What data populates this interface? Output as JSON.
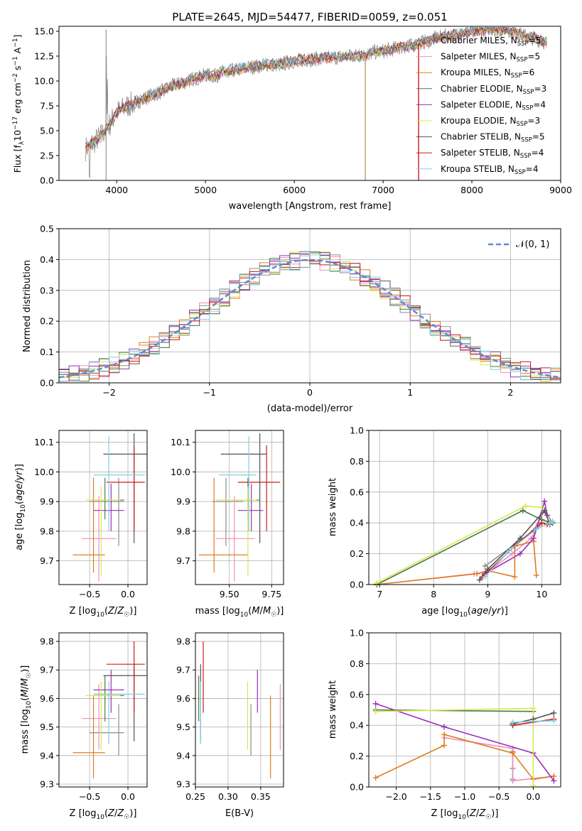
{
  "chart_data": [
    {
      "type": "line",
      "title": "PLATE=2645, MJD=54477, FIBERID=0059, z=0.051",
      "xlabel": "wavelength [Angstrom, rest frame]",
      "ylabel": "Flux [f_λ 10^-17 erg cm^-2 s^-1 A^-1]",
      "xlim": [
        3350,
        9000
      ],
      "ylim": [
        0,
        15.5
      ],
      "xticks": [
        "4000",
        "5000",
        "6000",
        "7000",
        "8000",
        "9000"
      ],
      "yticks": [
        "0.0",
        "2.5",
        "5.0",
        "7.5",
        "10.0",
        "12.5",
        "15.0"
      ],
      "legend_position": "right",
      "spectrum_points": [
        [
          3650,
          3.2
        ],
        [
          3700,
          3.6
        ],
        [
          3750,
          3.9
        ],
        [
          3800,
          4.3
        ],
        [
          3850,
          4.8
        ],
        [
          3900,
          5.2
        ],
        [
          3950,
          6.1
        ],
        [
          4000,
          6.8
        ],
        [
          4100,
          7.4
        ],
        [
          4200,
          7.8
        ],
        [
          4300,
          8.2
        ],
        [
          4400,
          8.6
        ],
        [
          4500,
          8.9
        ],
        [
          4600,
          9.4
        ],
        [
          4700,
          9.7
        ],
        [
          4800,
          10.0
        ],
        [
          4900,
          10.3
        ],
        [
          5000,
          10.6
        ],
        [
          5100,
          10.5
        ],
        [
          5200,
          10.9
        ],
        [
          5300,
          11.0
        ],
        [
          5400,
          11.2
        ],
        [
          5500,
          11.4
        ],
        [
          5600,
          11.5
        ],
        [
          5700,
          11.7
        ],
        [
          5800,
          11.6
        ],
        [
          5900,
          11.8
        ],
        [
          6000,
          12.0
        ],
        [
          6100,
          12.1
        ],
        [
          6200,
          12.2
        ],
        [
          6300,
          12.3
        ],
        [
          6400,
          12.3
        ],
        [
          6500,
          12.4
        ],
        [
          6600,
          12.5
        ],
        [
          6700,
          12.6
        ],
        [
          6800,
          12.6
        ],
        [
          6900,
          12.9
        ],
        [
          7000,
          13.0
        ],
        [
          7100,
          13.2
        ],
        [
          7200,
          13.4
        ],
        [
          7300,
          13.5
        ],
        [
          7400,
          13.8
        ],
        [
          7500,
          14.0
        ],
        [
          7600,
          14.3
        ],
        [
          7700,
          14.5
        ],
        [
          7800,
          14.6
        ],
        [
          7900,
          14.8
        ],
        [
          8000,
          14.9
        ],
        [
          8100,
          15.1
        ],
        [
          8200,
          15.3
        ],
        [
          8300,
          15.1
        ],
        [
          8400,
          15.2
        ],
        [
          8500,
          14.8
        ],
        [
          8600,
          14.5
        ],
        [
          8700,
          14.3
        ],
        [
          8800,
          14.0
        ],
        [
          8850,
          13.8
        ]
      ],
      "legend": [
        {
          "label": "Chabrier MILES, N",
          "sub": "SSP",
          "n": "=5",
          "color": "#8c8c8c"
        },
        {
          "label": "Salpeter MILES, N",
          "sub": "SSP",
          "n": "=5",
          "color": "#ef8fbf"
        },
        {
          "label": "Kroupa MILES, N",
          "sub": "SSP",
          "n": "=6",
          "color": "#e07b20"
        },
        {
          "label": "Chabrier ELODIE, N",
          "sub": "SSP",
          "n": "=3",
          "color": "#4a7a4a"
        },
        {
          "label": "Salpeter ELODIE, N",
          "sub": "SSP",
          "n": "=4",
          "color": "#9b30b8"
        },
        {
          "label": "Kroupa ELODIE, N",
          "sub": "SSP",
          "n": "=3",
          "color": "#d6e84a"
        },
        {
          "label": "Chabrier STELIB, N",
          "sub": "SSP",
          "n": "=5",
          "color": "#555555"
        },
        {
          "label": "Salpeter STELIB, N",
          "sub": "SSP",
          "n": "=4",
          "color": "#cc1a1a"
        },
        {
          "label": "Kroupa STELIB, N",
          "sub": "SSP",
          "n": "=4",
          "color": "#7fd0e0"
        }
      ]
    },
    {
      "type": "line",
      "xlabel": "(data-model)/error",
      "ylabel": "Normed distribution",
      "xlim": [
        -2.5,
        2.5
      ],
      "ylim": [
        0,
        0.5
      ],
      "xticks": [
        "−2",
        "−1",
        "0",
        "1",
        "2"
      ],
      "yticks": [
        "0.0",
        "0.1",
        "0.2",
        "0.3",
        "0.4",
        "0.5"
      ],
      "grid": true,
      "legend_label": "𝒩(0, 1)",
      "legend_color": "#5b8ad6",
      "histogram_bin_width": 0.1
    },
    {
      "type": "scatter",
      "xlabel": "Z [log10(Z/Z☉)]",
      "ylabel": "age [log10(age/yr)]",
      "xlim": [
        -0.9,
        0.25
      ],
      "ylim": [
        9.62,
        10.14
      ],
      "xticks": [
        "−0.5",
        "0.0"
      ],
      "yticks": [
        "9.7",
        "9.8",
        "9.9",
        "10.0",
        "10.1"
      ]
    },
    {
      "type": "scatter",
      "xlabel": "mass [log10(M/M☉)]",
      "xlim": [
        9.3,
        9.82
      ],
      "ylim": [
        9.62,
        10.14
      ],
      "xticks": [
        "9.50",
        "9.75"
      ],
      "yticks": [
        "9.7",
        "9.8",
        "9.9",
        "10.0",
        "10.1"
      ]
    },
    {
      "type": "line",
      "xlabel": "age [log10(age/yr)]",
      "ylabel": "mass weight",
      "xlim": [
        6.8,
        10.35
      ],
      "ylim": [
        0,
        1.0
      ],
      "xticks": [
        "7",
        "8",
        "9",
        "10"
      ],
      "yticks": [
        "0.0",
        "0.2",
        "0.4",
        "0.6",
        "0.8",
        "1.0"
      ],
      "grid": true
    },
    {
      "type": "scatter",
      "xlabel": "Z [log10(Z/Z☉)]",
      "ylabel": "mass [log10(M/M☉)]",
      "xlim": [
        -0.9,
        0.25
      ],
      "ylim": [
        9.29,
        9.83
      ],
      "xticks": [
        "−0.5",
        "0.0"
      ],
      "yticks": [
        "9.3",
        "9.4",
        "9.5",
        "9.6",
        "9.7",
        "9.8"
      ]
    },
    {
      "type": "scatter",
      "xlabel": "E(B-V)",
      "xlim": [
        0.25,
        0.385
      ],
      "ylim": [
        9.29,
        9.83
      ],
      "xticks": [
        "0.25",
        "0.30",
        "0.35"
      ],
      "yticks": [
        "9.3",
        "9.4",
        "9.5",
        "9.6",
        "9.7",
        "9.8"
      ]
    },
    {
      "type": "line",
      "xlabel": "Z [log10(Z/Z☉)]",
      "ylabel": "mass weight",
      "xlim": [
        -2.4,
        0.4
      ],
      "ylim": [
        0,
        1.0
      ],
      "xticks": [
        "−2.0",
        "−1.5",
        "−1.0",
        "−0.5",
        "0.0"
      ],
      "yticks": [
        "0.0",
        "0.2",
        "0.4",
        "0.6",
        "0.8",
        "1.0"
      ],
      "grid": true
    }
  ],
  "series_colors": [
    "#8c8c8c",
    "#ef8fbf",
    "#e07b20",
    "#4a7a4a",
    "#9b30b8",
    "#d6e84a",
    "#555555",
    "#cc1a1a",
    "#7fd0e0"
  ],
  "params": [
    {
      "Z": -0.12,
      "Zlo": -0.5,
      "Zhi": -0.05,
      "age": 9.9,
      "aglo": 9.75,
      "aghi": 9.98,
      "M": 9.48,
      "Mlo": 9.4,
      "Mhi": 9.58,
      "E": 0.335
    },
    {
      "Z": -0.38,
      "Zlo": -0.6,
      "Zhi": -0.15,
      "age": 9.775,
      "aglo": 9.63,
      "aghi": 9.92,
      "M": 9.53,
      "Mlo": 9.42,
      "Mhi": 9.65,
      "E": 0.38
    },
    {
      "Z": -0.45,
      "Zlo": -0.72,
      "Zhi": -0.3,
      "age": 9.72,
      "aglo": 9.66,
      "aghi": 9.98,
      "M": 9.41,
      "Mlo": 9.32,
      "Mhi": 9.61,
      "E": 0.365
    },
    {
      "Z": -0.3,
      "Zlo": -0.45,
      "Zhi": -0.05,
      "age": 9.905,
      "aglo": 9.84,
      "aghi": 9.98,
      "M": 9.61,
      "Mlo": 9.52,
      "Mhi": 9.68,
      "E": 0.255
    },
    {
      "Z": -0.22,
      "Zlo": -0.45,
      "Zhi": -0.05,
      "age": 9.87,
      "aglo": 9.8,
      "aghi": 9.96,
      "M": 9.63,
      "Mlo": 9.55,
      "Mhi": 9.7,
      "E": 0.345
    },
    {
      "Z": -0.35,
      "Zlo": -0.55,
      "Zhi": -0.1,
      "age": 9.905,
      "aglo": 9.65,
      "aghi": 9.95,
      "M": 9.61,
      "Mlo": 9.42,
      "Mhi": 9.66,
      "E": 0.33
    },
    {
      "Z": 0.08,
      "Zlo": -0.32,
      "Zhi": 0.25,
      "age": 10.06,
      "aglo": 9.76,
      "aghi": 10.13,
      "M": 9.68,
      "Mlo": 9.45,
      "Mhi": 9.72,
      "E": 0.258
    },
    {
      "Z": 0.08,
      "Zlo": -0.28,
      "Zhi": 0.22,
      "age": 9.965,
      "aglo": 9.8,
      "aghi": 10.09,
      "M": 9.72,
      "Mlo": 9.55,
      "Mhi": 9.8,
      "E": 0.262
    },
    {
      "Z": -0.25,
      "Zlo": -0.45,
      "Zhi": 0.22,
      "age": 9.99,
      "aglo": 9.8,
      "aghi": 10.12,
      "M": 9.615,
      "Mlo": 9.44,
      "Mhi": 9.66,
      "E": 0.258
    }
  ]
}
